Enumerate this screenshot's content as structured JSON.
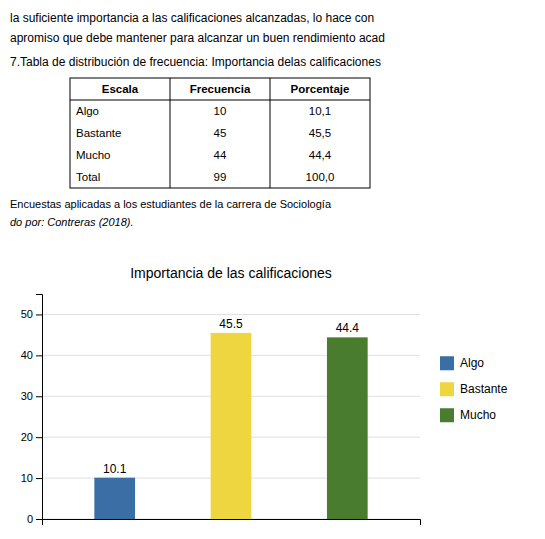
{
  "chart_data": {
    "type": "bar",
    "title": "Importancia de las calificaciones",
    "categories": [
      "Algo",
      "Bastante",
      "Mucho"
    ],
    "values": [
      10.1,
      45.5,
      44.4
    ],
    "colors": [
      "#3B6EA5",
      "#EDD640",
      "#4A7C2F"
    ],
    "ylim": [
      0,
      55
    ],
    "yticks": [
      0,
      10,
      20,
      30,
      40,
      50
    ],
    "grid": true,
    "legend": "right",
    "data_labels": true,
    "tick_labels": "y",
    "annotations": [
      "la suficiente importancia a las calificaciones alcanzadas, lo hace con",
      "apromiso que debe mantener para alcanzar un buen rendimiento acad",
      "Encuestas aplicadas a los estudiantes de la carrera de Sociología",
      "do por: Contreras (2018)."
    ],
    "table": {
      "title": "7.Tabla de distribución de frecuencia: Importancia delas calificaciones",
      "columns": [
        "Escala",
        "Frecuencia",
        "Porcentaje"
      ],
      "rows": [
        [
          "Algo",
          "10",
          "10,1"
        ],
        [
          "Bastante",
          "45",
          "45,5"
        ],
        [
          "Mucho",
          "44",
          "44,4"
        ],
        [
          "Total",
          "99",
          "100,0"
        ]
      ]
    }
  }
}
